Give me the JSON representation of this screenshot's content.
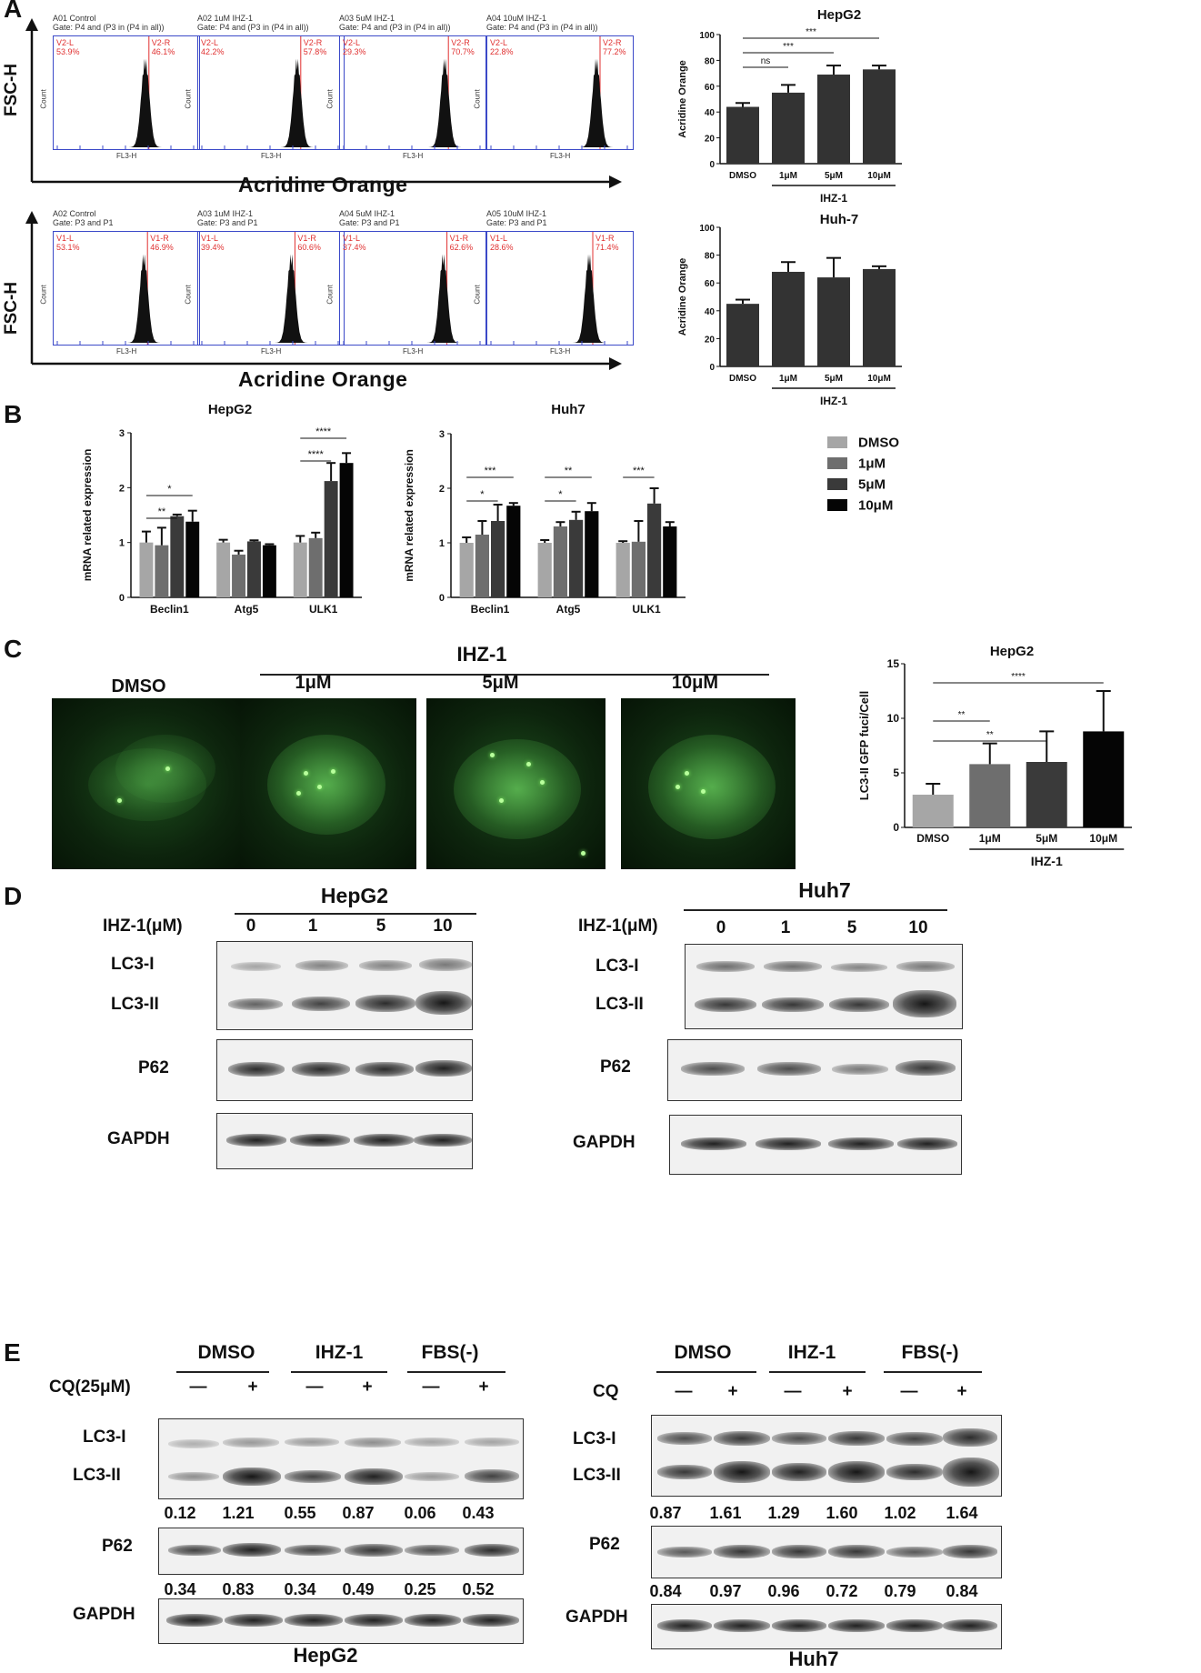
{
  "panels": {
    "A": "A",
    "B": "B",
    "C": "C",
    "D": "D",
    "E": "E"
  },
  "panelA": {
    "y_label": "FSC-H",
    "x_label": "Acridine Orange",
    "facs_x_label": "FL3-H",
    "facs_y_label": "Count",
    "row1": [
      {
        "title": "A01 Control",
        "gate": "Gate: P4 and (P3 in (P4 in all))",
        "left_name": "V2-L",
        "left_val": "53.9%",
        "right_name": "V2-R",
        "right_val": "46.1%"
      },
      {
        "title": "A02 1uM IHZ-1",
        "gate": "Gate: P4 and (P3 in (P4 in all))",
        "left_name": "V2-L",
        "left_val": "42.2%",
        "right_name": "V2-R",
        "right_val": "57.8%"
      },
      {
        "title": "A03 5uM IHZ-1",
        "gate": "Gate: P4 and (P3 in (P4 in all))",
        "left_name": "V2-L",
        "left_val": "29.3%",
        "right_name": "V2-R",
        "right_val": "70.7%"
      },
      {
        "title": "A04 10uM IHZ-1",
        "gate": "Gate: P4 and (P3 in (P4 in all))",
        "left_name": "V2-L",
        "left_val": "22.8%",
        "right_name": "V2-R",
        "right_val": "77.2%"
      }
    ],
    "row2": [
      {
        "title": "A02 Control",
        "gate": "Gate: P3 and P1",
        "left_name": "V1-L",
        "left_val": "53.1%",
        "right_name": "V1-R",
        "right_val": "46.9%"
      },
      {
        "title": "A03 1uM IHZ-1",
        "gate": "Gate: P3 and P1",
        "left_name": "V1-L",
        "left_val": "39.4%",
        "right_name": "V1-R",
        "right_val": "60.6%"
      },
      {
        "title": "A04 5uM IHZ-1",
        "gate": "Gate: P3 and P1",
        "left_name": "V1-L",
        "left_val": "37.4%",
        "right_name": "V1-R",
        "right_val": "62.6%"
      },
      {
        "title": "A05 10uM IHZ-1",
        "gate": "Gate: P3 and P1",
        "left_name": "V1-L",
        "left_val": "28.6%",
        "right_name": "V1-R",
        "right_val": "71.4%"
      }
    ]
  },
  "groups": {
    "ihz": "IHZ-1"
  },
  "panelC_labels": {
    "dmso": "DMSO",
    "c1": "1μM",
    "c5": "5μM",
    "c10": "10μM"
  },
  "panelD": {
    "hepg2": "HepG2",
    "huh7": "Huh7",
    "conc_label": "IHZ-1(μM)",
    "lanes": [
      "0",
      "1",
      "5",
      "10"
    ],
    "rows": [
      "LC3-I",
      "LC3-II",
      "P62",
      "GAPDH"
    ]
  },
  "panelE": {
    "groups": [
      "DMSO",
      "IHZ-1",
      "FBS(-)"
    ],
    "cq_hepg2": "CQ(25μM)",
    "cq_huh7": "CQ",
    "signs": [
      "—",
      "+",
      "—",
      "+",
      "—",
      "+"
    ],
    "rows": [
      "LC3-I",
      "LC3-II",
      "P62",
      "GAPDH"
    ],
    "hepg2_lc3_ratio": [
      "0.12",
      "1.21",
      "0.55",
      "0.87",
      "0.06",
      "0.43"
    ],
    "hepg2_p62_ratio": [
      "0.34",
      "0.83",
      "0.34",
      "0.49",
      "0.25",
      "0.52"
    ],
    "huh7_lc3_ratio": [
      "0.87",
      "1.61",
      "1.29",
      "1.60",
      "1.02",
      "1.64"
    ],
    "huh7_p62_ratio": [
      "0.84",
      "0.97",
      "0.96",
      "0.72",
      "0.79",
      "0.84"
    ],
    "hepg2": "HepG2",
    "huh7": "Huh7"
  },
  "chart_data": [
    {
      "id": "A_hepg2",
      "type": "bar",
      "title": "HepG2",
      "ylabel": "Acridine Orange",
      "ylim": [
        0,
        100
      ],
      "yticks": [
        0,
        20,
        40,
        60,
        80,
        100
      ],
      "categories": [
        "DMSO",
        "1μM",
        "5μM",
        "10μM"
      ],
      "values": [
        44,
        55,
        69,
        73
      ],
      "errors": [
        3,
        6,
        7,
        3
      ],
      "group_label": "IHZ-1",
      "significance": [
        {
          "from": 0,
          "to": 1,
          "label": "ns"
        },
        {
          "from": 0,
          "to": 2,
          "label": "***"
        },
        {
          "from": 0,
          "to": 3,
          "label": "***"
        }
      ]
    },
    {
      "id": "A_huh7",
      "type": "bar",
      "title": "Huh-7",
      "ylabel": "Acridine Orange",
      "ylim": [
        0,
        100
      ],
      "yticks": [
        0,
        20,
        40,
        60,
        80,
        100
      ],
      "categories": [
        "DMSO",
        "1μM",
        "5μM",
        "10μM"
      ],
      "values": [
        45,
        68,
        64,
        70
      ],
      "errors": [
        3,
        7,
        14,
        2
      ],
      "group_label": "IHZ-1",
      "significance": []
    },
    {
      "id": "B_hepg2",
      "type": "bar",
      "title": "HepG2",
      "ylabel": "mRNA related expression",
      "ylim": [
        0,
        3
      ],
      "yticks": [
        0,
        1,
        2,
        3
      ],
      "categories": [
        "Beclin1",
        "Atg5",
        "ULK1"
      ],
      "series": [
        {
          "name": "DMSO",
          "values": [
            1.0,
            1.0,
            1.0
          ],
          "errors": [
            0.2,
            0.05,
            0.12
          ]
        },
        {
          "name": "1μM",
          "values": [
            0.95,
            0.78,
            1.08
          ],
          "errors": [
            0.32,
            0.07,
            0.1
          ]
        },
        {
          "name": "5μM",
          "values": [
            1.48,
            1.02,
            2.12
          ],
          "errors": [
            0.03,
            0.02,
            0.33
          ]
        },
        {
          "name": "10μM",
          "values": [
            1.38,
            0.95,
            2.45
          ],
          "errors": [
            0.2,
            0.02,
            0.18
          ]
        }
      ],
      "significance": [
        {
          "cat": 0,
          "from": 0,
          "to": 2,
          "label": "**"
        },
        {
          "cat": 0,
          "from": 0,
          "to": 3,
          "label": "*"
        },
        {
          "cat": 2,
          "from": 0,
          "to": 2,
          "label": "****"
        },
        {
          "cat": 2,
          "from": 0,
          "to": 3,
          "label": "****"
        }
      ]
    },
    {
      "id": "B_huh7",
      "type": "bar",
      "title": "Huh7",
      "ylabel": "mRNA related expression",
      "ylim": [
        0,
        3
      ],
      "yticks": [
        0,
        1,
        2,
        3
      ],
      "categories": [
        "Beclin1",
        "Atg5",
        "ULK1"
      ],
      "series": [
        {
          "name": "DMSO",
          "values": [
            1.0,
            1.0,
            1.0
          ],
          "errors": [
            0.1,
            0.05,
            0.03
          ]
        },
        {
          "name": "1μM",
          "values": [
            1.15,
            1.3,
            1.02
          ],
          "errors": [
            0.25,
            0.08,
            0.38
          ]
        },
        {
          "name": "5μM",
          "values": [
            1.4,
            1.42,
            1.72
          ],
          "errors": [
            0.3,
            0.15,
            0.28
          ]
        },
        {
          "name": "10μM",
          "values": [
            1.68,
            1.58,
            1.3
          ],
          "errors": [
            0.05,
            0.15,
            0.08
          ]
        }
      ],
      "significance": [
        {
          "cat": 0,
          "from": 0,
          "to": 2,
          "label": "*"
        },
        {
          "cat": 0,
          "from": 0,
          "to": 3,
          "label": "***"
        },
        {
          "cat": 1,
          "from": 0,
          "to": 2,
          "label": "*"
        },
        {
          "cat": 1,
          "from": 0,
          "to": 3,
          "label": "**"
        },
        {
          "cat": 2,
          "from": 0,
          "to": 2,
          "label": "***"
        }
      ]
    },
    {
      "id": "C_hepg2",
      "type": "bar",
      "title": "HepG2",
      "ylabel": "LC3-II GFP fuci/Cell",
      "ylim": [
        0,
        15
      ],
      "yticks": [
        0,
        5,
        10,
        15
      ],
      "categories": [
        "DMSO",
        "1μM",
        "5μM",
        "10μM"
      ],
      "values": [
        3.0,
        5.8,
        6.0,
        8.8
      ],
      "errors": [
        1.0,
        1.9,
        2.8,
        3.7
      ],
      "group_label": "IHZ-1",
      "significance": [
        {
          "from": 0,
          "to": 1,
          "label": "**"
        },
        {
          "from": 0,
          "to": 2,
          "label": "**"
        },
        {
          "from": 0,
          "to": 3,
          "label": "****"
        }
      ]
    }
  ],
  "colors": {
    "bar_dark": "#333333",
    "series": [
      "#a6a6a6",
      "#6e6e6e",
      "#3a3a3a",
      "#050505"
    ],
    "facs_frame": "#3b49c8",
    "gate_red": "#e03030"
  }
}
